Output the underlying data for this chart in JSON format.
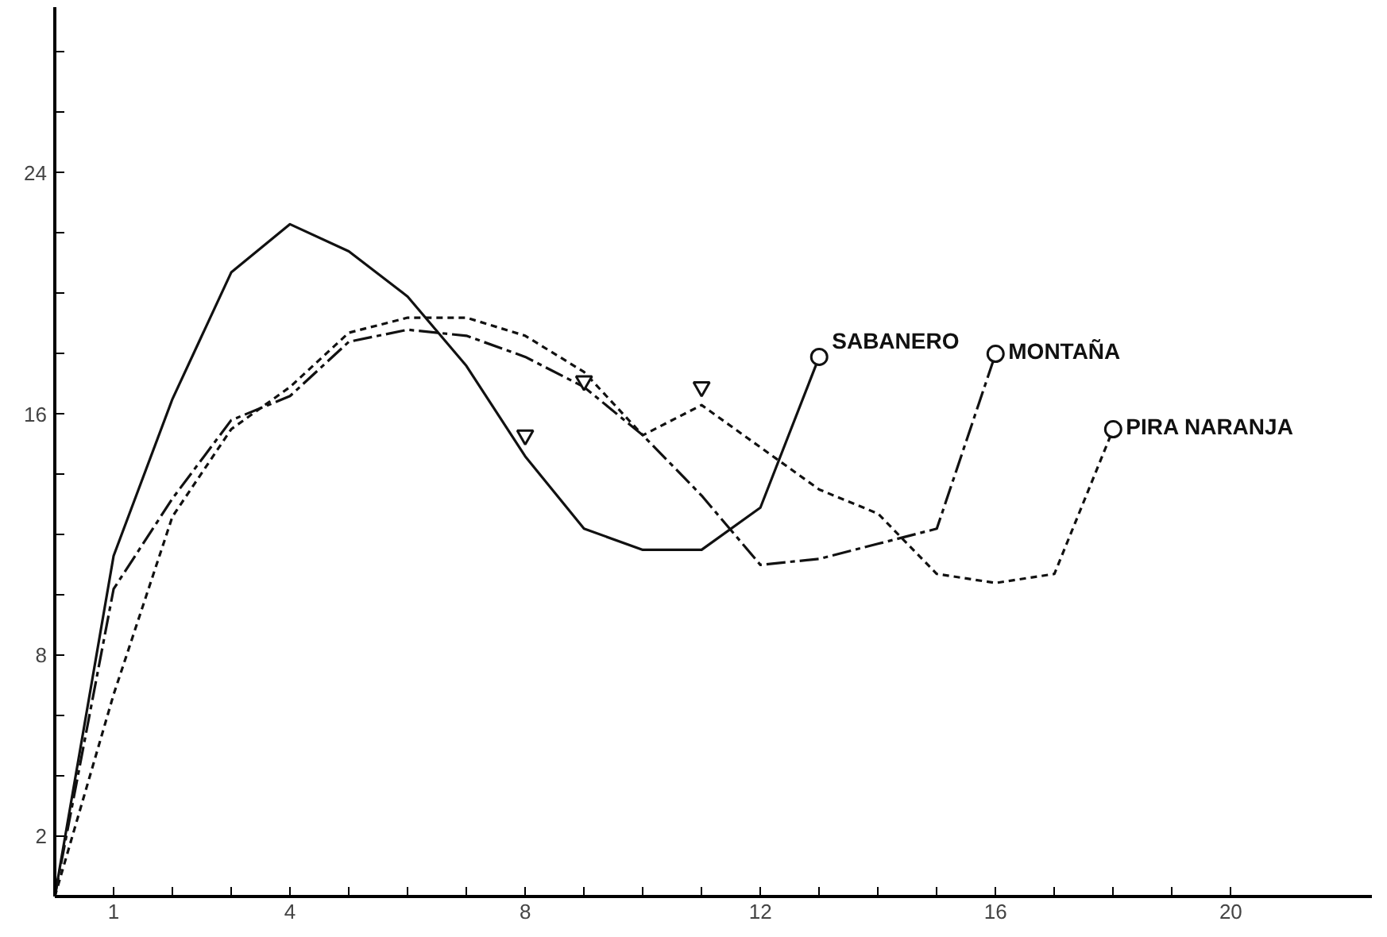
{
  "chart_data": {
    "type": "line",
    "xlim": [
      0,
      22.4
    ],
    "ylim": [
      0,
      29.5
    ],
    "xticks": [
      {
        "value": 0,
        "label": null
      },
      1,
      {
        "value": 2,
        "label": null
      },
      {
        "value": 3,
        "label": null
      },
      4,
      {
        "value": 5,
        "label": null
      },
      {
        "value": 6,
        "label": null
      },
      {
        "value": 7,
        "label": null
      },
      8,
      {
        "value": 9,
        "label": null
      },
      {
        "value": 10,
        "label": null
      },
      {
        "value": 11,
        "label": null
      },
      12,
      {
        "value": 13,
        "label": null
      },
      {
        "value": 14,
        "label": null
      },
      {
        "value": 15,
        "label": null
      },
      16,
      {
        "value": 17,
        "label": null
      },
      {
        "value": 18,
        "label": null
      },
      {
        "value": 19,
        "label": null
      },
      20
    ],
    "yticks": [
      {
        "value": 0,
        "label": null
      },
      2,
      {
        "value": 4,
        "label": null
      },
      {
        "value": 6,
        "label": null
      },
      8,
      {
        "value": 10,
        "label": null
      },
      {
        "value": 12,
        "label": null
      },
      {
        "value": 14,
        "label": null
      },
      16,
      {
        "value": 18,
        "label": null
      },
      {
        "value": 20,
        "label": null
      },
      {
        "value": 22,
        "label": null
      },
      24,
      {
        "value": 26,
        "label": null
      },
      {
        "value": 28,
        "label": null
      }
    ],
    "grid": false,
    "marker": "none",
    "series": [
      {
        "name": "SABANERO",
        "color": "#111111",
        "line_style": "solid",
        "x": [
          0,
          1,
          2,
          3,
          4,
          5,
          6,
          7,
          8,
          9,
          10,
          11,
          12,
          13
        ],
        "values": [
          0,
          11.3,
          16.5,
          20.7,
          22.3,
          21.4,
          19.9,
          17.6,
          14.6,
          12.2,
          11.5,
          11.5,
          12.9,
          17.9
        ]
      },
      {
        "name": "MONTAÑA",
        "color": "#111111",
        "line_style": "dashed",
        "x": [
          0,
          1,
          2,
          3,
          4,
          5,
          6,
          7,
          8,
          9,
          10,
          11,
          12,
          13,
          14,
          15,
          16
        ],
        "values": [
          0,
          10.2,
          13.2,
          15.8,
          16.6,
          18.4,
          18.8,
          18.6,
          17.9,
          16.9,
          15.3,
          13.3,
          11.0,
          11.2,
          11.7,
          12.2,
          18.0
        ]
      },
      {
        "name": "PIRA NARANJA",
        "color": "#111111",
        "line_style": "dotted",
        "x": [
          0,
          1,
          2,
          3,
          4,
          5,
          6,
          7,
          8,
          9,
          10,
          11,
          12,
          13,
          14,
          15,
          16,
          17,
          18
        ],
        "values": [
          0,
          6.7,
          12.6,
          15.5,
          16.9,
          18.7,
          19.2,
          19.2,
          18.6,
          17.4,
          15.3,
          16.3,
          14.9,
          13.5,
          12.7,
          10.7,
          10.4,
          10.7,
          15.5
        ]
      },
      {
        "type": "scatter",
        "marker": "circle",
        "color": "#111111",
        "x": [
          13,
          16,
          18
        ],
        "values": [
          17.9,
          18.0,
          15.5
        ]
      },
      {
        "type": "scatter",
        "marker": "triangle",
        "color": "#111111",
        "x": [
          8,
          9,
          11
        ],
        "values": [
          15.3,
          17.1,
          16.9
        ]
      }
    ]
  }
}
